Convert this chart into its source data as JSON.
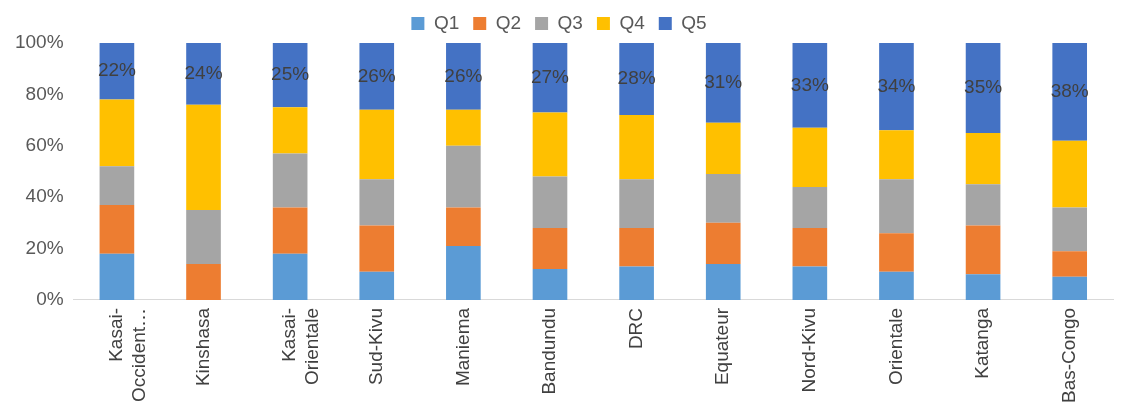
{
  "chart_data": {
    "type": "bar",
    "stacked": true,
    "legend": "top",
    "grid": false,
    "categories": [
      "Kasai-Occident…",
      "Kinshasa",
      "Kasai-Orientale",
      "Sud-Kivu",
      "Maniema",
      "Bandundu",
      "DRC",
      "Equateur",
      "Nord-Kivu",
      "Orientale",
      "Katanga",
      "Bas-Congo"
    ],
    "ylim": [
      0,
      100
    ],
    "yticks": [
      {
        "value": 0,
        "label": "0%"
      },
      {
        "value": 20,
        "label": "20%"
      },
      {
        "value": 40,
        "label": "40%"
      },
      {
        "value": 60,
        "label": "60%"
      },
      {
        "value": 80,
        "label": "80%"
      },
      {
        "value": 100,
        "label": "100%"
      }
    ],
    "series": [
      {
        "name": "Q1",
        "color": "#5b9bd5",
        "values": [
          18,
          0,
          18,
          11,
          21,
          12,
          13,
          14,
          13,
          11,
          10,
          9
        ]
      },
      {
        "name": "Q2",
        "color": "#ed7d31",
        "values": [
          19,
          14,
          18,
          18,
          15,
          16,
          15,
          16,
          15,
          15,
          19,
          10
        ]
      },
      {
        "name": "Q3",
        "color": "#a5a5a5",
        "values": [
          15,
          21,
          21,
          18,
          24,
          20,
          19,
          19,
          16,
          21,
          16,
          17
        ]
      },
      {
        "name": "Q4",
        "color": "#ffc000",
        "values": [
          26,
          41,
          18,
          27,
          14,
          25,
          25,
          20,
          23,
          19,
          20,
          26
        ]
      },
      {
        "name": "Q5",
        "color": "#4472c4",
        "values": [
          22,
          24,
          25,
          26,
          26,
          27,
          28,
          31,
          33,
          34,
          35,
          38
        ],
        "value_labels": [
          "22%",
          "24%",
          "25%",
          "26%",
          "26%",
          "27%",
          "28%",
          "31%",
          "33%",
          "34%",
          "35%",
          "38%"
        ]
      }
    ]
  }
}
